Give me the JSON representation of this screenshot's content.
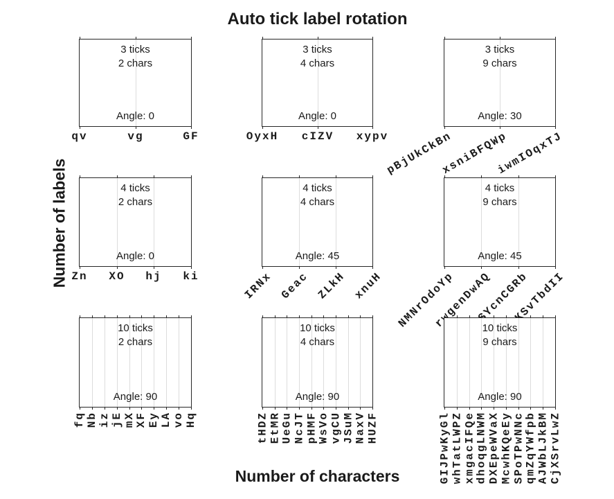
{
  "title": "Auto tick label rotation",
  "xlabel": "Number of characters",
  "ylabel": "Number of labels",
  "colors": {
    "frame": "#262626",
    "grid": "#dcdcdc",
    "text": "#1a1a1a"
  },
  "chart_data": {
    "type": "subplot-grid",
    "rows": 3,
    "cols": 3,
    "title": "Auto tick label rotation",
    "xlabel": "Number of characters",
    "ylabel": "Number of labels",
    "grid": "vertical-gridlines-on",
    "subplots": [
      {
        "row": 0,
        "col": 0,
        "n_ticks": 3,
        "n_chars": 2,
        "rotation_deg": 0,
        "lines": [
          "3 ticks",
          "2 chars"
        ],
        "angle_label": "Angle: 0",
        "x_tick_labels": [
          "qv",
          "vg",
          "GF"
        ]
      },
      {
        "row": 0,
        "col": 1,
        "n_ticks": 3,
        "n_chars": 4,
        "rotation_deg": 0,
        "lines": [
          "3 ticks",
          "4 chars"
        ],
        "angle_label": "Angle: 0",
        "x_tick_labels": [
          "OyxH",
          "cIZV",
          "xypv"
        ]
      },
      {
        "row": 0,
        "col": 2,
        "n_ticks": 3,
        "n_chars": 9,
        "rotation_deg": 30,
        "lines": [
          "3 ticks",
          "9 chars"
        ],
        "angle_label": "Angle: 30",
        "x_tick_labels": [
          "pBjUkCkBn",
          "xsniBFQWp",
          "iwmIOqxTJ"
        ]
      },
      {
        "row": 1,
        "col": 0,
        "n_ticks": 4,
        "n_chars": 2,
        "rotation_deg": 0,
        "lines": [
          "4 ticks",
          "2 chars"
        ],
        "angle_label": "Angle: 0",
        "x_tick_labels": [
          "Zn",
          "XO",
          "hj",
          "ki"
        ]
      },
      {
        "row": 1,
        "col": 1,
        "n_ticks": 4,
        "n_chars": 4,
        "rotation_deg": 45,
        "lines": [
          "4 ticks",
          "4 chars"
        ],
        "angle_label": "Angle: 45",
        "x_tick_labels": [
          "IRNx",
          "Geac",
          "ZLkH",
          "xnuH"
        ]
      },
      {
        "row": 1,
        "col": 2,
        "n_ticks": 4,
        "n_chars": 9,
        "rotation_deg": 45,
        "lines": [
          "4 ticks",
          "9 chars"
        ],
        "angle_label": "Angle: 45",
        "x_tick_labels": [
          "NMNrOdoYp",
          "rwgenDwAQ",
          "NSYcnCGRb",
          "qKSvTbdII"
        ]
      },
      {
        "row": 2,
        "col": 0,
        "n_ticks": 10,
        "n_chars": 2,
        "rotation_deg": 90,
        "lines": [
          "10 ticks",
          "2 chars"
        ],
        "angle_label": "Angle: 90",
        "x_tick_labels": [
          "fq",
          "Nb",
          "iz",
          "jE",
          "mX",
          "XF",
          "Ey",
          "LA",
          "vo",
          "Hq"
        ]
      },
      {
        "row": 2,
        "col": 1,
        "n_ticks": 10,
        "n_chars": 4,
        "rotation_deg": 90,
        "lines": [
          "10 ticks",
          "4 chars"
        ],
        "angle_label": "Angle: 90",
        "x_tick_labels": [
          "tHDZ",
          "EtMR",
          "UeGu",
          "NcJT",
          "pHMF",
          "WsVo",
          "vgCU",
          "JSuM",
          "NaxV",
          "HUZF"
        ]
      },
      {
        "row": 2,
        "col": 2,
        "n_ticks": 10,
        "n_chars": 9,
        "rotation_deg": 90,
        "lines": [
          "10 ticks",
          "9 chars"
        ],
        "angle_label": "Angle: 90",
        "x_tick_labels": [
          "GIJPwKyGl",
          "whTatLWPZ",
          "xmgacIFQe",
          "dhoqgLNWM",
          "DXEpeWVaX",
          "McwhKQeEy",
          "SPoTPwNNc",
          "qmZqYWfpb",
          "AJWbLJkBM",
          "CjXSrvLwZ"
        ]
      }
    ]
  }
}
